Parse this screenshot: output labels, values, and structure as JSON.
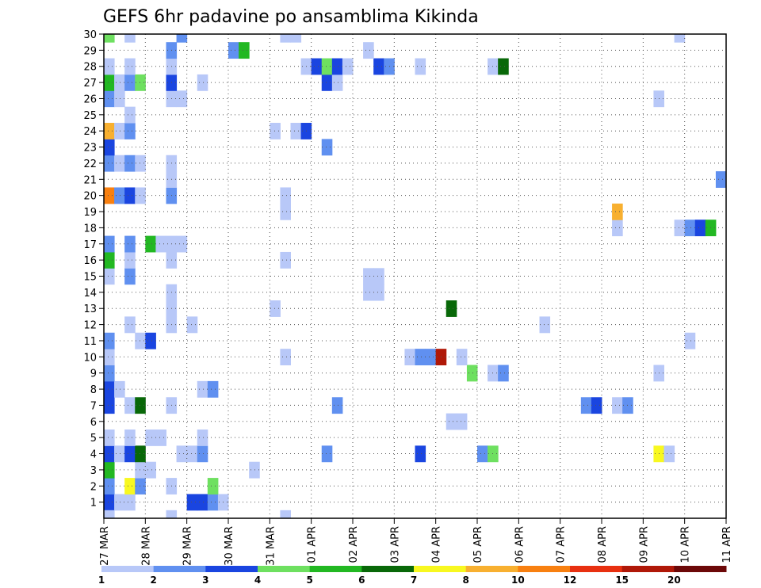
{
  "chart_data": {
    "type": "heatmap",
    "title": "GEFS 6hr padavine po ansamblima Kikinda",
    "xlabel": "",
    "ylabel": "",
    "y_ticks": [
      "1",
      "2",
      "3",
      "4",
      "5",
      "6",
      "7",
      "8",
      "9",
      "10",
      "11",
      "12",
      "13",
      "14",
      "15",
      "16",
      "17",
      "18",
      "19",
      "20",
      "21",
      "22",
      "23",
      "24",
      "25",
      "26",
      "27",
      "28",
      "29",
      "30"
    ],
    "ylim": [
      0,
      30
    ],
    "x_ticks": [
      "27 MAR",
      "28 MAR",
      "29 MAR",
      "30 MAR",
      "31 MAR",
      "01 APR",
      "02 APR",
      "03 APR",
      "04 APR",
      "05 APR",
      "06 APR",
      "07 APR",
      "08 APR",
      "09 APR",
      "10 APR",
      "11 APR"
    ],
    "xlim": [
      0,
      60
    ],
    "grid": true,
    "colorbar": {
      "labels": [
        "1",
        "2",
        "3",
        "4",
        "5",
        "6",
        "7",
        "8",
        "10",
        "12",
        "15",
        "20"
      ],
      "colors": [
        "#b8c8f8",
        "#6090f0",
        "#1a45e0",
        "#6ee060",
        "#22b822",
        "#086808",
        "#f8f820",
        "#f8b030",
        "#f88010",
        "#e83010",
        "#b01808",
        "#6c0808"
      ]
    },
    "cells": [
      {
        "member": 1,
        "step": 0,
        "level": 3
      },
      {
        "member": 1,
        "step": 1,
        "level": 1
      },
      {
        "member": 1,
        "step": 2,
        "level": 1
      },
      {
        "member": 1,
        "step": 8,
        "level": 3
      },
      {
        "member": 1,
        "step": 9,
        "level": 3
      },
      {
        "member": 1,
        "step": 10,
        "level": 2
      },
      {
        "member": 1,
        "step": 11,
        "level": 1
      },
      {
        "member": 2,
        "step": 0,
        "level": 2
      },
      {
        "member": 2,
        "step": 2,
        "level": 7
      },
      {
        "member": 2,
        "step": 3,
        "level": 2
      },
      {
        "member": 2,
        "step": 6,
        "level": 1
      },
      {
        "member": 2,
        "step": 10,
        "level": 4
      },
      {
        "member": 3,
        "step": 0,
        "level": 5
      },
      {
        "member": 3,
        "step": 3,
        "level": 1
      },
      {
        "member": 3,
        "step": 4,
        "level": 1
      },
      {
        "member": 3,
        "step": 14,
        "level": 1
      },
      {
        "member": 4,
        "step": 0,
        "level": 3
      },
      {
        "member": 4,
        "step": 1,
        "level": 1
      },
      {
        "member": 4,
        "step": 2,
        "level": 3
      },
      {
        "member": 4,
        "step": 3,
        "level": 6
      },
      {
        "member": 4,
        "step": 7,
        "level": 1
      },
      {
        "member": 4,
        "step": 8,
        "level": 1
      },
      {
        "member": 4,
        "step": 9,
        "level": 2
      },
      {
        "member": 4,
        "step": 21,
        "level": 2
      },
      {
        "member": 4,
        "step": 30,
        "level": 3
      },
      {
        "member": 4,
        "step": 36,
        "level": 2
      },
      {
        "member": 4,
        "step": 37,
        "level": 4
      },
      {
        "member": 4,
        "step": 53,
        "level": 7
      },
      {
        "member": 4,
        "step": 54,
        "level": 1
      },
      {
        "member": 5,
        "step": 0,
        "level": 1
      },
      {
        "member": 5,
        "step": 2,
        "level": 1
      },
      {
        "member": 5,
        "step": 4,
        "level": 1
      },
      {
        "member": 5,
        "step": 5,
        "level": 1
      },
      {
        "member": 5,
        "step": 9,
        "level": 1
      },
      {
        "member": 6,
        "step": 33,
        "level": 1
      },
      {
        "member": 6,
        "step": 34,
        "level": 1
      },
      {
        "member": 7,
        "step": 0,
        "level": 3
      },
      {
        "member": 7,
        "step": 2,
        "level": 1
      },
      {
        "member": 7,
        "step": 3,
        "level": 6
      },
      {
        "member": 7,
        "step": 6,
        "level": 1
      },
      {
        "member": 7,
        "step": 22,
        "level": 2
      },
      {
        "member": 7,
        "step": 46,
        "level": 2
      },
      {
        "member": 7,
        "step": 47,
        "level": 3
      },
      {
        "member": 7,
        "step": 49,
        "level": 1
      },
      {
        "member": 7,
        "step": 50,
        "level": 2
      },
      {
        "member": 8,
        "step": 0,
        "level": 3
      },
      {
        "member": 8,
        "step": 1,
        "level": 1
      },
      {
        "member": 8,
        "step": 9,
        "level": 1
      },
      {
        "member": 8,
        "step": 10,
        "level": 2
      },
      {
        "member": 9,
        "step": 0,
        "level": 2
      },
      {
        "member": 9,
        "step": 35,
        "level": 4
      },
      {
        "member": 9,
        "step": 37,
        "level": 1
      },
      {
        "member": 9,
        "step": 38,
        "level": 2
      },
      {
        "member": 9,
        "step": 53,
        "level": 1
      },
      {
        "member": 10,
        "step": 0,
        "level": 1
      },
      {
        "member": 10,
        "step": 17,
        "level": 1
      },
      {
        "member": 10,
        "step": 29,
        "level": 1
      },
      {
        "member": 10,
        "step": 30,
        "level": 2
      },
      {
        "member": 10,
        "step": 31,
        "level": 2
      },
      {
        "member": 10,
        "step": 32,
        "level": 11
      },
      {
        "member": 10,
        "step": 34,
        "level": 1
      },
      {
        "member": 11,
        "step": 0,
        "level": 2
      },
      {
        "member": 11,
        "step": 3,
        "level": 1
      },
      {
        "member": 11,
        "step": 4,
        "level": 3
      },
      {
        "member": 11,
        "step": 56,
        "level": 1
      },
      {
        "member": 12,
        "step": 2,
        "level": 1
      },
      {
        "member": 12,
        "step": 6,
        "level": 1
      },
      {
        "member": 12,
        "step": 8,
        "level": 1
      },
      {
        "member": 12,
        "step": 42,
        "level": 1
      },
      {
        "member": 13,
        "step": 6,
        "level": 1
      },
      {
        "member": 13,
        "step": 16,
        "level": 1
      },
      {
        "member": 13,
        "step": 33,
        "level": 6
      },
      {
        "member": 14,
        "step": 6,
        "level": 1
      },
      {
        "member": 14,
        "step": 25,
        "level": 1
      },
      {
        "member": 14,
        "step": 26,
        "level": 1
      },
      {
        "member": 15,
        "step": 0,
        "level": 1
      },
      {
        "member": 15,
        "step": 2,
        "level": 2
      },
      {
        "member": 15,
        "step": 25,
        "level": 1
      },
      {
        "member": 15,
        "step": 26,
        "level": 1
      },
      {
        "member": 16,
        "step": 0,
        "level": 5
      },
      {
        "member": 16,
        "step": 2,
        "level": 1
      },
      {
        "member": 16,
        "step": 6,
        "level": 1
      },
      {
        "member": 16,
        "step": 17,
        "level": 1
      },
      {
        "member": 17,
        "step": 0,
        "level": 2
      },
      {
        "member": 17,
        "step": 2,
        "level": 2
      },
      {
        "member": 17,
        "step": 4,
        "level": 5
      },
      {
        "member": 17,
        "step": 5,
        "level": 1
      },
      {
        "member": 17,
        "step": 6,
        "level": 1
      },
      {
        "member": 17,
        "step": 7,
        "level": 1
      },
      {
        "member": 18,
        "step": 49,
        "level": 1
      },
      {
        "member": 18,
        "step": 55,
        "level": 1
      },
      {
        "member": 18,
        "step": 56,
        "level": 2
      },
      {
        "member": 18,
        "step": 57,
        "level": 3
      },
      {
        "member": 18,
        "step": 58,
        "level": 5
      },
      {
        "member": 19,
        "step": 17,
        "level": 1
      },
      {
        "member": 19,
        "step": 49,
        "level": 8
      },
      {
        "member": 20,
        "step": 0,
        "level": 9
      },
      {
        "member": 20,
        "step": 1,
        "level": 2
      },
      {
        "member": 20,
        "step": 2,
        "level": 3
      },
      {
        "member": 20,
        "step": 3,
        "level": 1
      },
      {
        "member": 20,
        "step": 6,
        "level": 2
      },
      {
        "member": 20,
        "step": 17,
        "level": 1
      },
      {
        "member": 21,
        "step": 6,
        "level": 1
      },
      {
        "member": 21,
        "step": 59,
        "level": 2
      },
      {
        "member": 22,
        "step": 0,
        "level": 2
      },
      {
        "member": 22,
        "step": 1,
        "level": 1
      },
      {
        "member": 22,
        "step": 2,
        "level": 2
      },
      {
        "member": 22,
        "step": 3,
        "level": 1
      },
      {
        "member": 22,
        "step": 6,
        "level": 1
      },
      {
        "member": 23,
        "step": 0,
        "level": 3
      },
      {
        "member": 23,
        "step": 21,
        "level": 2
      },
      {
        "member": 24,
        "step": 0,
        "level": 8
      },
      {
        "member": 24,
        "step": 1,
        "level": 1
      },
      {
        "member": 24,
        "step": 2,
        "level": 2
      },
      {
        "member": 24,
        "step": 16,
        "level": 1
      },
      {
        "member": 24,
        "step": 18,
        "level": 1
      },
      {
        "member": 24,
        "step": 19,
        "level": 3
      },
      {
        "member": 25,
        "step": 2,
        "level": 1
      },
      {
        "member": 26,
        "step": 0,
        "level": 2
      },
      {
        "member": 26,
        "step": 1,
        "level": 1
      },
      {
        "member": 26,
        "step": 6,
        "level": 1
      },
      {
        "member": 26,
        "step": 7,
        "level": 1
      },
      {
        "member": 26,
        "step": 53,
        "level": 1
      },
      {
        "member": 27,
        "step": 0,
        "level": 5
      },
      {
        "member": 27,
        "step": 1,
        "level": 1
      },
      {
        "member": 27,
        "step": 2,
        "level": 2
      },
      {
        "member": 27,
        "step": 3,
        "level": 4
      },
      {
        "member": 27,
        "step": 6,
        "level": 3
      },
      {
        "member": 27,
        "step": 9,
        "level": 1
      },
      {
        "member": 27,
        "step": 21,
        "level": 3
      },
      {
        "member": 27,
        "step": 22,
        "level": 1
      },
      {
        "member": 28,
        "step": 0,
        "level": 1
      },
      {
        "member": 28,
        "step": 2,
        "level": 1
      },
      {
        "member": 28,
        "step": 6,
        "level": 1
      },
      {
        "member": 28,
        "step": 19,
        "level": 1
      },
      {
        "member": 28,
        "step": 20,
        "level": 3
      },
      {
        "member": 28,
        "step": 21,
        "level": 4
      },
      {
        "member": 28,
        "step": 22,
        "level": 3
      },
      {
        "member": 28,
        "step": 23,
        "level": 1
      },
      {
        "member": 28,
        "step": 26,
        "level": 3
      },
      {
        "member": 28,
        "step": 27,
        "level": 2
      },
      {
        "member": 28,
        "step": 30,
        "level": 1
      },
      {
        "member": 28,
        "step": 37,
        "level": 1
      },
      {
        "member": 28,
        "step": 38,
        "level": 6
      },
      {
        "member": 29,
        "step": 6,
        "level": 2
      },
      {
        "member": 29,
        "step": 12,
        "level": 2
      },
      {
        "member": 29,
        "step": 13,
        "level": 5
      },
      {
        "member": 29,
        "step": 25,
        "level": 1
      },
      {
        "member": 30,
        "step": 0,
        "level": 4
      },
      {
        "member": 30,
        "step": 2,
        "level": 1
      },
      {
        "member": 30,
        "step": 7,
        "level": 2
      },
      {
        "member": 30,
        "step": 17,
        "level": 1
      },
      {
        "member": 30,
        "step": 18,
        "level": 1
      },
      {
        "member": 30,
        "step": 55,
        "level": 1
      },
      {
        "member": 0,
        "step": 0,
        "level": 1
      },
      {
        "member": 0,
        "step": 6,
        "level": 1
      },
      {
        "member": 0,
        "step": 17,
        "level": 1
      }
    ]
  }
}
